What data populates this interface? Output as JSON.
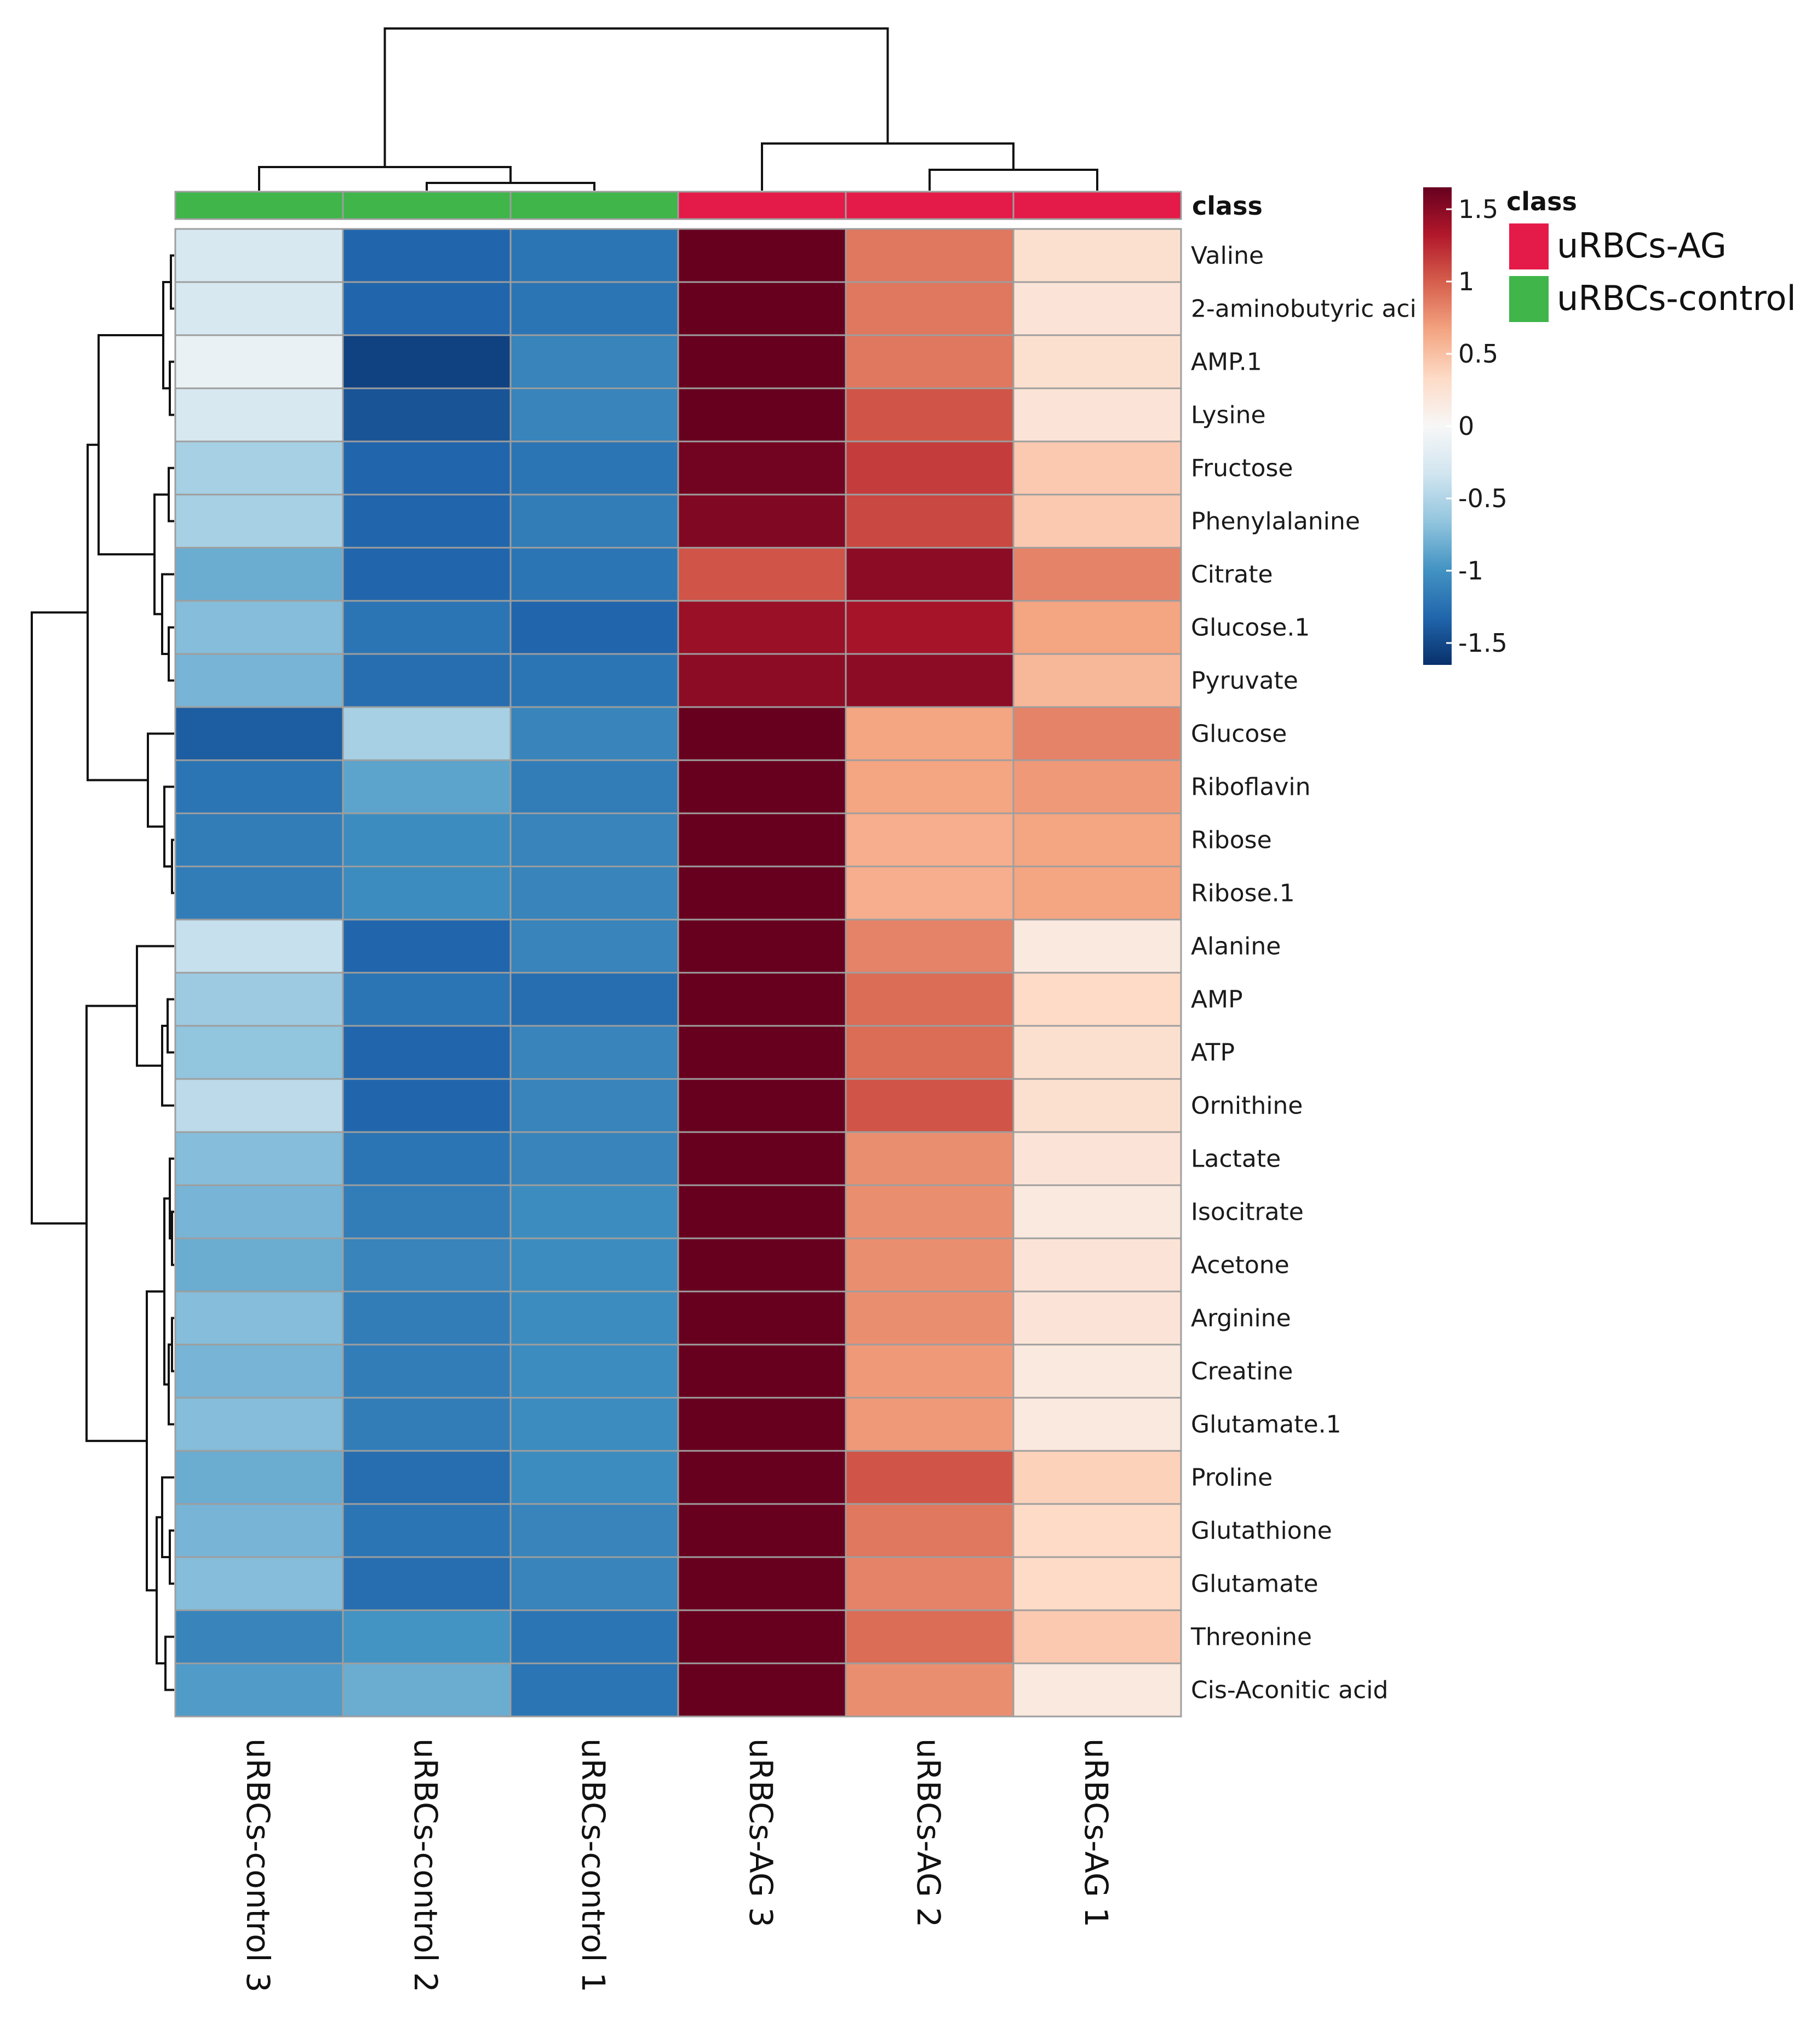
{
  "chart_data": {
    "type": "heatmap",
    "columns": [
      "uRBCs-control 3",
      "uRBCs-control 2",
      "uRBCs-control 1",
      "uRBCs-AG 3",
      "uRBCs-AG 2",
      "uRBCs-AG 1"
    ],
    "column_classes": [
      "uRBCs-control",
      "uRBCs-control",
      "uRBCs-control",
      "uRBCs-AG",
      "uRBCs-AG",
      "uRBCs-AG"
    ],
    "rows": [
      "Valine",
      "2-aminobutyric aci",
      "AMP.1",
      "Lysine",
      "Fructose",
      "Phenylalanine",
      "Citrate",
      "Glucose.1",
      "Pyruvate",
      "Glucose",
      "Riboflavin",
      "Ribose",
      "Ribose.1",
      "Alanine",
      "AMP",
      "ATP",
      "Ornithine",
      "Lactate",
      "Isocitrate",
      "Acetone",
      "Arginine",
      "Creatine",
      "Glutamate.1",
      "Proline",
      "Glutathione",
      "Glutamate",
      "Threonine",
      "Cis-Aconitic acid"
    ],
    "values": [
      [
        -0.25,
        -1.2,
        -1.1,
        1.55,
        0.8,
        0.25
      ],
      [
        -0.25,
        -1.2,
        -1.1,
        1.55,
        0.8,
        0.2
      ],
      [
        -0.1,
        -1.4,
        -1.0,
        1.5,
        0.8,
        0.25
      ],
      [
        -0.25,
        -1.3,
        -1.0,
        1.5,
        0.95,
        0.2
      ],
      [
        -0.5,
        -1.2,
        -1.1,
        1.45,
        1.05,
        0.4
      ],
      [
        -0.5,
        -1.2,
        -1.05,
        1.4,
        1.0,
        0.4
      ],
      [
        -0.75,
        -1.2,
        -1.1,
        0.95,
        1.35,
        0.75
      ],
      [
        -0.65,
        -1.1,
        -1.2,
        1.3,
        1.25,
        0.6
      ],
      [
        -0.7,
        -1.15,
        -1.1,
        1.35,
        1.35,
        0.5
      ],
      [
        -1.25,
        -0.5,
        -1.0,
        1.55,
        0.6,
        0.75
      ],
      [
        -1.1,
        -0.8,
        -1.05,
        1.6,
        0.6,
        0.65
      ],
      [
        -1.05,
        -0.95,
        -1.0,
        1.7,
        0.55,
        0.6
      ],
      [
        -1.05,
        -0.95,
        -1.0,
        1.7,
        0.55,
        0.6
      ],
      [
        -0.35,
        -1.2,
        -1.0,
        1.75,
        0.75,
        0.15
      ],
      [
        -0.55,
        -1.1,
        -1.15,
        1.6,
        0.85,
        0.3
      ],
      [
        -0.6,
        -1.2,
        -1.0,
        1.6,
        0.85,
        0.25
      ],
      [
        -0.4,
        -1.2,
        -1.0,
        1.55,
        0.95,
        0.25
      ],
      [
        -0.65,
        -1.1,
        -1.0,
        1.8,
        0.7,
        0.2
      ],
      [
        -0.7,
        -1.05,
        -0.95,
        1.8,
        0.7,
        0.15
      ],
      [
        -0.75,
        -1.0,
        -0.95,
        1.8,
        0.7,
        0.2
      ],
      [
        -0.65,
        -1.05,
        -0.95,
        1.75,
        0.7,
        0.2
      ],
      [
        -0.7,
        -1.05,
        -0.95,
        1.8,
        0.65,
        0.15
      ],
      [
        -0.65,
        -1.05,
        -0.95,
        1.8,
        0.65,
        0.15
      ],
      [
        -0.75,
        -1.15,
        -0.95,
        1.6,
        0.95,
        0.35
      ],
      [
        -0.7,
        -1.1,
        -1.0,
        1.65,
        0.8,
        0.3
      ],
      [
        -0.65,
        -1.15,
        -1.0,
        1.7,
        0.75,
        0.3
      ],
      [
        -1.0,
        -0.9,
        -1.1,
        1.6,
        0.85,
        0.4
      ],
      [
        -0.85,
        -0.75,
        -1.1,
        1.8,
        0.7,
        0.15
      ]
    ],
    "color_scale": {
      "min": -1.5,
      "max": 1.5,
      "ticks": [
        "1.5",
        "1",
        "0.5",
        "0",
        "-0.5",
        "-1",
        "-1.5"
      ],
      "tick_values": [
        1.5,
        1,
        0.5,
        0,
        -0.5,
        -1,
        -1.5
      ],
      "stops": [
        "#08306b",
        "#2166ac",
        "#4393c3",
        "#92c5de",
        "#d1e5f0",
        "#f7f7f7",
        "#fddbc7",
        "#f4a582",
        "#d6604d",
        "#b2182b",
        "#67001f"
      ]
    },
    "legend": {
      "title": "class",
      "items": [
        {
          "label": "uRBCs-AG",
          "color": "#e41a48"
        },
        {
          "label": "uRBCs-control",
          "color": "#3fb54a"
        }
      ]
    },
    "annotation_label": "class"
  }
}
